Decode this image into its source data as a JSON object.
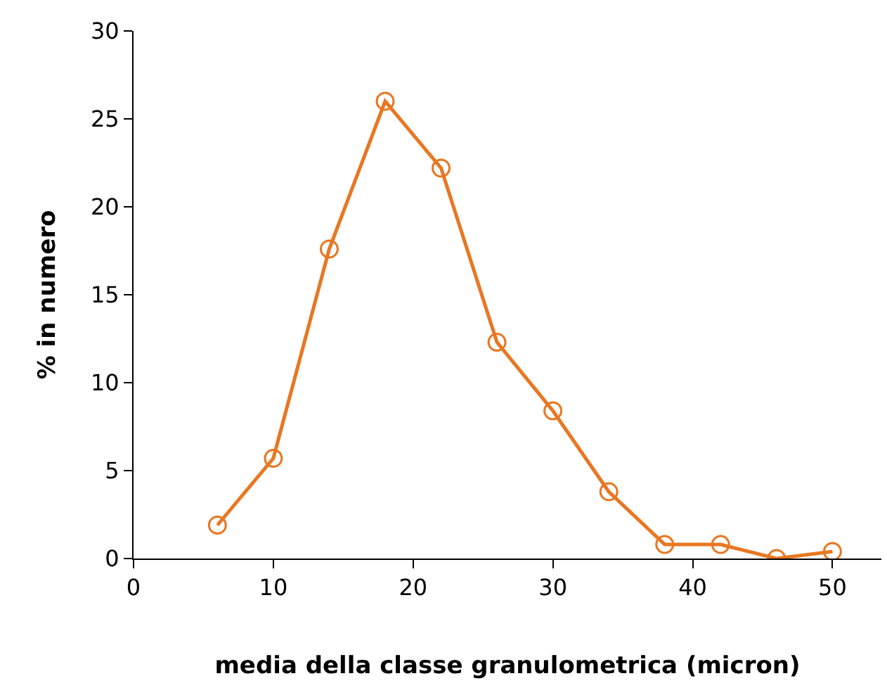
{
  "chart_data": {
    "type": "line",
    "xlabel": "media della classe granulometrica (micron)",
    "ylabel": "% in numero",
    "x": [
      6,
      10,
      14,
      18,
      22,
      26,
      30,
      34,
      38,
      42,
      46,
      50
    ],
    "series": [
      {
        "color": "#e87722",
        "values": [
          1.9,
          5.7,
          17.6,
          26.0,
          22.2,
          12.3,
          8.4,
          3.8,
          0.8,
          0.8,
          0.0,
          0.4
        ]
      }
    ],
    "xlim": [
      0,
      53.5
    ],
    "xticks": [
      0,
      10,
      20,
      30,
      40,
      50
    ],
    "ylim": [
      0,
      30
    ],
    "yticks": [
      0,
      5,
      10,
      15,
      20,
      25,
      30
    ],
    "marker": "circle",
    "line_style": "solid"
  }
}
